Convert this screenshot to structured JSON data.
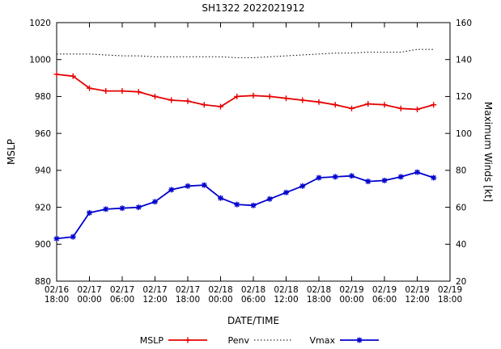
{
  "title": "SH1322 2022021912",
  "chart_data": {
    "type": "line",
    "title": "SH1322 2022021912",
    "xlabel": "DATE/TIME",
    "ylabel_left": "MSLP",
    "ylabel_right": "Maximum Winds [kt]",
    "ylim_left": [
      880,
      1020
    ],
    "ylim_right": [
      20,
      160
    ],
    "yticks_left": [
      880,
      900,
      920,
      940,
      960,
      980,
      1000,
      1020
    ],
    "yticks_right": [
      20,
      40,
      60,
      80,
      100,
      120,
      140,
      160
    ],
    "x_range_hours": [
      0,
      72
    ],
    "x_ticks": [
      {
        "hour": 0,
        "date": "02/16",
        "time": "18:00"
      },
      {
        "hour": 6,
        "date": "02/17",
        "time": "00:00"
      },
      {
        "hour": 12,
        "date": "02/17",
        "time": "06:00"
      },
      {
        "hour": 18,
        "date": "02/17",
        "time": "12:00"
      },
      {
        "hour": 24,
        "date": "02/17",
        "time": "18:00"
      },
      {
        "hour": 30,
        "date": "02/18",
        "time": "00:00"
      },
      {
        "hour": 36,
        "date": "02/18",
        "time": "06:00"
      },
      {
        "hour": 42,
        "date": "02/18",
        "time": "12:00"
      },
      {
        "hour": 48,
        "date": "02/18",
        "time": "18:00"
      },
      {
        "hour": 54,
        "date": "02/19",
        "time": "00:00"
      },
      {
        "hour": 60,
        "date": "02/19",
        "time": "06:00"
      },
      {
        "hour": 66,
        "date": "02/19",
        "time": "12:00"
      },
      {
        "hour": 72,
        "date": "02/19",
        "time": "18:00"
      }
    ],
    "series": [
      {
        "name": "MSLP",
        "axis": "left",
        "color": "#e60000",
        "marker": "plus",
        "dash": "",
        "width": 1.8,
        "x_hours": [
          0,
          3,
          6,
          9,
          12,
          15,
          18,
          21,
          24,
          27,
          30,
          33,
          36,
          39,
          42,
          45,
          48,
          51,
          54,
          57,
          60,
          63,
          66,
          69
        ],
        "values": [
          992,
          991,
          984.5,
          983,
          983,
          982.5,
          980,
          978,
          977.5,
          975.5,
          974.5,
          980,
          980.5,
          980,
          979,
          978,
          977,
          975.5,
          973.5,
          976,
          975.5,
          973.5,
          973,
          975.5
        ]
      },
      {
        "name": "Penv",
        "axis": "left",
        "color": "#000000",
        "marker": "none",
        "dash": "1.5,2.5",
        "width": 1,
        "x_hours": [
          0,
          3,
          6,
          9,
          12,
          15,
          18,
          21,
          24,
          27,
          30,
          33,
          36,
          39,
          42,
          45,
          48,
          51,
          54,
          57,
          60,
          63,
          66,
          69
        ],
        "values": [
          1003,
          1003,
          1003,
          1002.5,
          1002,
          1002,
          1001.5,
          1001.5,
          1001.5,
          1001.5,
          1001.5,
          1001,
          1001,
          1001.5,
          1002,
          1002.5,
          1003,
          1003.5,
          1003.5,
          1004,
          1004,
          1004,
          1005.5,
          1005.5
        ]
      },
      {
        "name": "Vmax",
        "axis": "right",
        "color": "#0000cd",
        "marker": "asterisk",
        "dash": "",
        "width": 1.8,
        "x_hours": [
          0,
          3,
          6,
          9,
          12,
          15,
          18,
          21,
          24,
          27,
          30,
          33,
          36,
          39,
          42,
          45,
          48,
          51,
          54,
          57,
          60,
          63,
          66,
          69
        ],
        "values": [
          43,
          44,
          57,
          59,
          59.5,
          60,
          63,
          69.5,
          71.5,
          72,
          65,
          61.5,
          61,
          64.5,
          68,
          71.5,
          76,
          76.5,
          77,
          74,
          74.5,
          76.5,
          79,
          76
        ]
      }
    ],
    "legend": {
      "position": "bottom",
      "entries": [
        "MSLP",
        "Penv",
        "Vmax"
      ]
    }
  }
}
